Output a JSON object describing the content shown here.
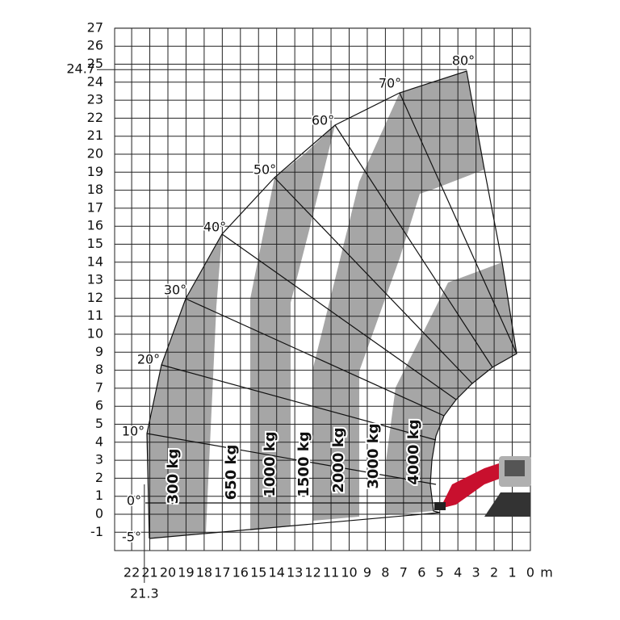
{
  "y_axis": {
    "ticks": [
      -1,
      0,
      1,
      2,
      3,
      4,
      5,
      6,
      7,
      8,
      9,
      10,
      11,
      12,
      13,
      14,
      15,
      16,
      17,
      18,
      19,
      20,
      21,
      22,
      23,
      24,
      25,
      26,
      27
    ]
  },
  "x_axis": {
    "ticks": [
      22,
      21,
      20,
      19,
      18,
      17,
      16,
      15,
      14,
      13,
      12,
      11,
      10,
      9,
      8,
      7,
      6,
      5,
      4,
      3,
      2,
      1,
      0
    ],
    "unit": "m"
  },
  "max_height": 24.7,
  "max_reach": 21.3,
  "angles": [
    "80°",
    "70°",
    "60°",
    "50°",
    "40°",
    "30°",
    "20°",
    "10°",
    "0°",
    "-5°"
  ],
  "loads": [
    "300 kg",
    "650 kg",
    "1000 kg",
    "1500 kg",
    "2000 kg",
    "3000 kg",
    "4000 kg"
  ]
}
